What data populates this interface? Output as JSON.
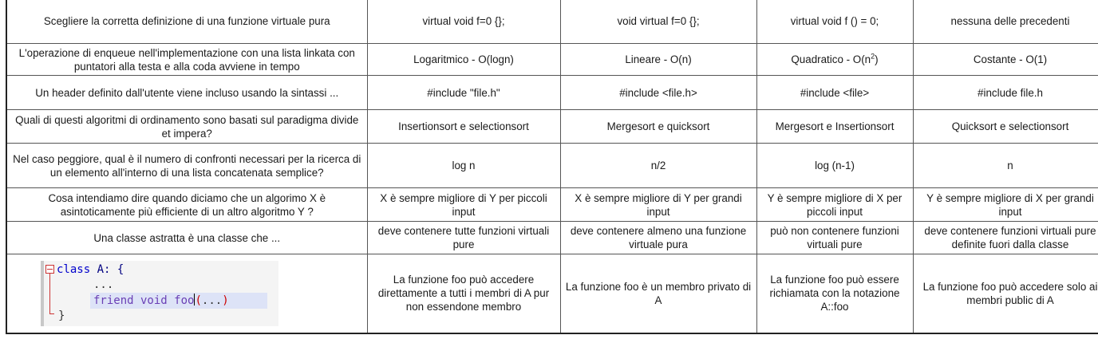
{
  "rows": [
    {
      "question": "Scegliere la corretta definizione di una funzione virtuale pura",
      "answers": [
        "virtual void f=0 {};",
        "void virtual f=0 {};",
        "virtual void f () = 0;",
        "nessuna delle precedenti"
      ]
    },
    {
      "question": "L'operazione di enqueue nell'implementazione con una lista  linkata con puntatori alla testa e alla coda avviene in tempo",
      "answers": [
        "Logaritmico - O(logn)",
        "Lineare - O(n)",
        "Quadratico - O(n",
        "Costante - O(1)"
      ],
      "superscript": "2",
      "closing": ")"
    },
    {
      "question": "Un header definito dall'utente viene incluso usando la sintassi ...",
      "answers": [
        "#include \"file.h\"",
        "#include <file.h>",
        "#include <file>",
        "#include file.h"
      ]
    },
    {
      "question": "Quali di questi algoritmi di ordinamento sono basati sul paradigma divide et impera?",
      "answers": [
        "Insertionsort e selectionsort",
        "Mergesort e quicksort",
        "Mergesort e Insertionsort",
        "Quicksort e selectionsort"
      ]
    },
    {
      "question": "Nel caso peggiore, qual è il numero di confronti necessari per la ricerca di un elemento all'interno di una lista concatenata semplice?",
      "answers": [
        "log n",
        "n/2",
        "log (n-1)",
        "n"
      ]
    },
    {
      "question": "Cosa intendiamo dire quando diciamo che un algorimo X è asintoticamente più efficiente di un altro algoritmo Y ?",
      "answers": [
        "X è sempre migliore di Y per piccoli input",
        "X è sempre migliore di Y per grandi input",
        "Y è sempre migliore di X per piccoli input",
        "Y è sempre migliore di X per grandi input"
      ]
    },
    {
      "question": "Una classe astratta è una classe che ...",
      "answers": [
        "deve contenere tutte funzioni virtuali pure",
        "deve contenere almeno una funzione virtuale pura",
        "può non contenere funzioni virtuali pure",
        "deve contenere funzioni virtuali pure definite fuori dalla classe"
      ]
    },
    {
      "answers": [
        "La funzione foo può accedere direttamente a tutti i membri di A pur non essendone membro",
        "La funzione foo è un membro privato di A",
        "La funzione foo può essere richiamata con la notazione A::foo",
        "La funzione foo può accedere solo ai membri public di A"
      ]
    }
  ],
  "code": {
    "kw_class": "class",
    "class_name": " A: {",
    "ellipsis": "...",
    "kw_friend": "friend",
    "kw_void": " void",
    "fn_name": " foo",
    "args_open": "(",
    "args": "...",
    "args_close": ")",
    "closing_brace": "}"
  }
}
